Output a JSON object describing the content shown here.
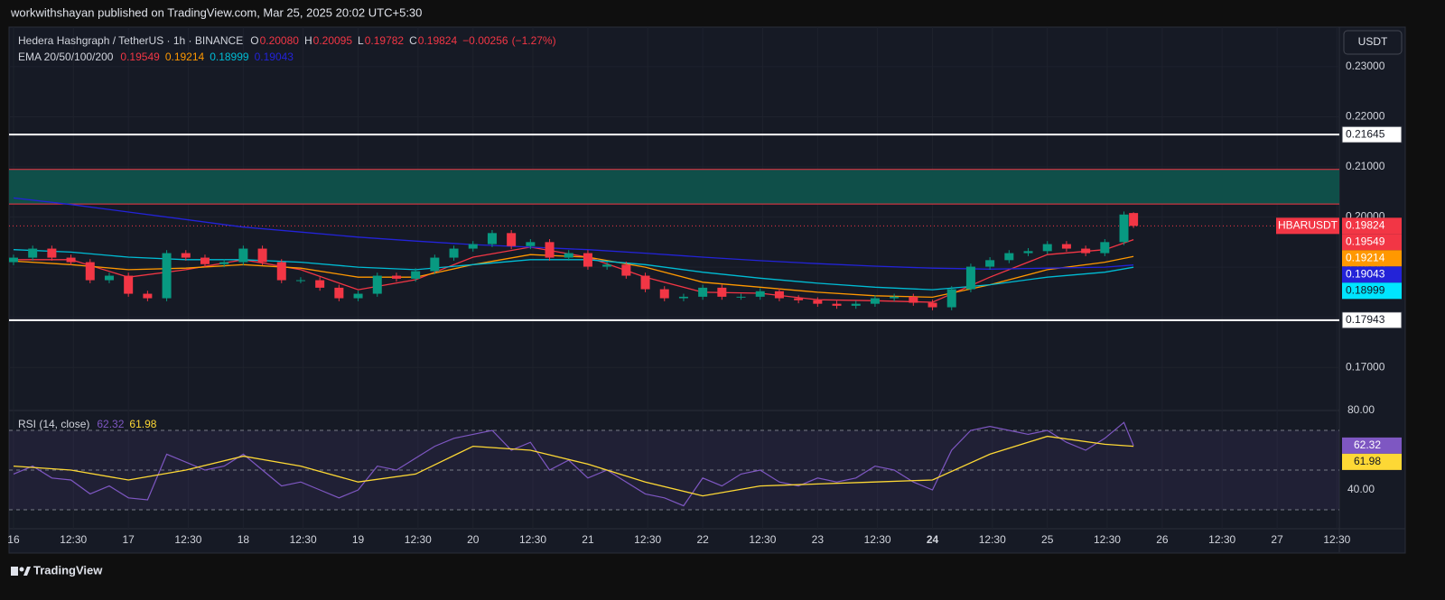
{
  "header": {
    "published": "workwithshayan published on TradingView.com, Mar 25, 2025 20:02 UTC+5:30",
    "footer": "TradingView"
  },
  "chart_data": {
    "type": "candlestick",
    "title": "Hedera Hashgraph / TetherUS · 1h · BINANCE",
    "ohlc_legend": [
      {
        "key": "O",
        "value": {
          "value": 0.2008,
          "label": "0.20080"
        }
      },
      {
        "key": "H",
        "value": 0.20095
      },
      {
        "key": "L",
        "value": 0.19782
      },
      {
        "key": "C",
        "value": 0.19824
      }
    ],
    "change": {
      "value": -0.00256,
      "label": "−0.00256"
    },
    "change_pct": {
      "value": -1.27,
      "label": "(−1.27%)"
    },
    "currency": "USDT",
    "symbol": "HBARUSDT",
    "last_price": 0.19824,
    "up_color": "#089981",
    "down_color": "#f23645",
    "x": [
      0,
      4,
      8,
      12,
      16,
      20,
      24,
      28,
      32,
      36,
      40,
      44,
      48,
      52,
      56,
      60,
      64,
      68,
      72,
      76,
      80,
      84,
      88,
      92,
      96,
      100,
      104,
      108,
      112,
      116,
      120,
      124,
      128,
      132,
      136,
      140,
      144,
      148,
      152,
      156,
      160,
      164,
      168,
      172,
      176,
      180,
      184,
      188,
      192,
      196,
      200,
      204,
      208,
      212,
      216,
      220,
      224,
      228,
      232,
      234
    ],
    "open": [
      0.191,
      0.1919,
      0.1937,
      0.1919,
      0.191,
      0.1874,
      0.1883,
      0.1847,
      0.1838,
      0.1928,
      0.1919,
      0.1906,
      0.191,
      0.1937,
      0.191,
      0.1874,
      0.1874,
      0.1859,
      0.1838,
      0.1847,
      0.1883,
      0.1877,
      0.1892,
      0.1919,
      0.1937,
      0.1946,
      0.1968,
      0.1942,
      0.195,
      0.1919,
      0.1928,
      0.1901,
      0.1905,
      0.1883,
      0.1856,
      0.1838,
      0.1841,
      0.1859,
      0.1841,
      0.1841,
      0.1852,
      0.1838,
      0.1834,
      0.1827,
      0.1823,
      0.1827,
      0.1838,
      0.1841,
      0.1829,
      0.182,
      0.1856,
      0.1901,
      0.1914,
      0.1928,
      0.1932,
      0.1946,
      0.1937,
      0.1928,
      0.195,
      0.2008
    ],
    "high": [
      0.1925,
      0.1943,
      0.1943,
      0.1925,
      0.1916,
      0.1889,
      0.1889,
      0.1853,
      0.1934,
      0.1934,
      0.1925,
      0.1916,
      0.1943,
      0.1943,
      0.1916,
      0.188,
      0.188,
      0.1865,
      0.1853,
      0.1889,
      0.1889,
      0.1898,
      0.1925,
      0.1943,
      0.1952,
      0.1974,
      0.1974,
      0.1956,
      0.1956,
      0.1934,
      0.1934,
      0.1911,
      0.1911,
      0.1889,
      0.1862,
      0.1847,
      0.1865,
      0.1865,
      0.1847,
      0.1858,
      0.1858,
      0.1844,
      0.184,
      0.1833,
      0.1833,
      0.1844,
      0.1847,
      0.1847,
      0.1835,
      0.1862,
      0.1907,
      0.192,
      0.1934,
      0.1938,
      0.1952,
      0.1952,
      0.1943,
      0.1956,
      0.2011,
      0.20095
    ],
    "low": [
      0.1904,
      0.1913,
      0.1913,
      0.1904,
      0.1868,
      0.1868,
      0.1841,
      0.1832,
      0.1832,
      0.1913,
      0.19,
      0.19,
      0.1904,
      0.1904,
      0.1868,
      0.1868,
      0.1853,
      0.1832,
      0.1832,
      0.1841,
      0.1871,
      0.1871,
      0.1886,
      0.1913,
      0.1931,
      0.194,
      0.1936,
      0.1936,
      0.1913,
      0.1913,
      0.1895,
      0.1895,
      0.1877,
      0.185,
      0.1832,
      0.1832,
      0.1835,
      0.1835,
      0.1835,
      0.1835,
      0.1832,
      0.1828,
      0.1821,
      0.1817,
      0.1817,
      0.1821,
      0.1832,
      0.1823,
      0.1814,
      0.1814,
      0.185,
      0.1895,
      0.1908,
      0.1922,
      0.1926,
      0.1931,
      0.1922,
      0.1922,
      0.1944,
      0.19782
    ],
    "close": [
      0.1919,
      0.1937,
      0.1919,
      0.191,
      0.1874,
      0.1883,
      0.1847,
      0.1838,
      0.1928,
      0.1919,
      0.1906,
      0.191,
      0.1937,
      0.191,
      0.1874,
      0.1874,
      0.1859,
      0.1838,
      0.1847,
      0.1883,
      0.1877,
      0.1892,
      0.1919,
      0.1937,
      0.1946,
      0.1968,
      0.1942,
      0.195,
      0.1919,
      0.1928,
      0.1901,
      0.1905,
      0.1883,
      0.1856,
      0.1838,
      0.1841,
      0.1859,
      0.1841,
      0.1841,
      0.1852,
      0.1838,
      0.1834,
      0.1827,
      0.1823,
      0.1827,
      0.1838,
      0.1841,
      0.1829,
      0.182,
      0.1856,
      0.1901,
      0.1914,
      0.1928,
      0.1932,
      0.1946,
      0.1937,
      0.1928,
      0.195,
      0.2005,
      0.19824
    ],
    "xlim": [
      -0.94,
      277
    ],
    "xticks": [
      {
        "value": 0,
        "label": "16"
      },
      {
        "value": 12.5,
        "label": "12:30"
      },
      {
        "value": 24,
        "label": "17"
      },
      {
        "value": 36.5,
        "label": "12:30"
      },
      {
        "value": 48,
        "label": "18"
      },
      {
        "value": 60.5,
        "label": "12:30"
      },
      {
        "value": 72,
        "label": "19"
      },
      {
        "value": 84.5,
        "label": "12:30"
      },
      {
        "value": 96,
        "label": "20"
      },
      {
        "value": 108.5,
        "label": "12:30"
      },
      {
        "value": 120,
        "label": "21"
      },
      {
        "value": 132.5,
        "label": "12:30"
      },
      {
        "value": 144,
        "label": "22"
      },
      {
        "value": 156.5,
        "label": "12:30"
      },
      {
        "value": 168,
        "label": "23"
      },
      {
        "value": 180.5,
        "label": "12:30"
      },
      {
        "value": 192,
        "label": "24",
        "bold": true
      },
      {
        "value": 204.5,
        "label": "12:30"
      },
      {
        "value": 216,
        "label": "25"
      },
      {
        "value": 228.5,
        "label": "12:30"
      },
      {
        "value": 240,
        "label": "26"
      },
      {
        "value": 252.5,
        "label": "12:30"
      },
      {
        "value": 264,
        "label": "27"
      },
      {
        "value": 276.5,
        "label": "12:30"
      }
    ],
    "ylim": [
      0.1614,
      0.2379
    ],
    "yticks": [
      {
        "value": 0.17,
        "label": "0.17000"
      },
      {
        "value": 0.18,
        "label": "0.18000"
      },
      {
        "value": 0.19,
        "label": "0.19000"
      },
      {
        "value": 0.2,
        "label": "0.20000"
      },
      {
        "value": 0.21,
        "label": "0.21000"
      },
      {
        "value": 0.22,
        "label": "0.22000"
      },
      {
        "value": 0.23,
        "label": "0.23000"
      }
    ],
    "levels": [
      0.21645,
      0.17943
    ],
    "zone": [
      0.2026,
      0.2095
    ],
    "zone_color": "#0f4f49",
    "zone_edge_color": "#f23645",
    "ema": {
      "title": "EMA 20/50/100/200",
      "x": [
        0,
        12,
        24,
        36,
        48,
        60,
        72,
        84,
        96,
        108,
        120,
        132,
        144,
        156,
        168,
        180,
        192,
        204,
        216,
        228,
        234
      ],
      "series": [
        {
          "color": "#f23645",
          "values": [
            0.1915,
            0.1915,
            0.188,
            0.1895,
            0.1915,
            0.1895,
            0.1855,
            0.1875,
            0.192,
            0.194,
            0.192,
            0.188,
            0.185,
            0.1848,
            0.1835,
            0.1833,
            0.183,
            0.188,
            0.1925,
            0.1935,
            0.19549
          ]
        },
        {
          "color": "#ff9800",
          "values": [
            0.1912,
            0.1905,
            0.1895,
            0.1898,
            0.1905,
            0.1898,
            0.188,
            0.188,
            0.1905,
            0.1925,
            0.192,
            0.19,
            0.187,
            0.186,
            0.185,
            0.1843,
            0.184,
            0.1865,
            0.1895,
            0.191,
            0.19214
          ]
        },
        {
          "color": "#00bcd4",
          "values": [
            0.1935,
            0.193,
            0.192,
            0.1915,
            0.1915,
            0.191,
            0.19,
            0.1895,
            0.1905,
            0.1915,
            0.1915,
            0.1905,
            0.189,
            0.1878,
            0.1868,
            0.186,
            0.1855,
            0.1865,
            0.188,
            0.189,
            0.18999
          ]
        },
        {
          "color": "#2323d8",
          "values": [
            0.2038,
            0.2025,
            0.201,
            0.1995,
            0.198,
            0.197,
            0.196,
            0.1952,
            0.1945,
            0.194,
            0.1935,
            0.1928,
            0.192,
            0.1913,
            0.1907,
            0.1902,
            0.1898,
            0.1896,
            0.1898,
            0.19,
            0.19043
          ]
        }
      ]
    },
    "rsi": {
      "title": "RSI (14, close)",
      "color": "#7e57c2",
      "values": [
        48,
        52,
        46,
        45,
        38,
        42,
        36,
        35,
        58,
        54,
        50,
        52,
        58,
        50,
        42,
        44,
        40,
        36,
        40,
        52,
        50,
        56,
        62,
        66,
        68,
        70,
        60,
        64,
        50,
        55,
        46,
        50,
        44,
        38,
        36,
        32,
        46,
        42,
        48,
        50,
        44,
        42,
        46,
        44,
        46,
        52,
        50,
        44,
        40,
        60,
        70,
        72,
        70,
        68,
        70,
        64,
        60,
        66,
        74,
        62.32
      ],
      "ma": {
        "color": "#fdd835",
        "x": [
          0,
          12,
          24,
          36,
          48,
          60,
          72,
          84,
          96,
          108,
          120,
          132,
          144,
          156,
          168,
          180,
          192,
          204,
          216,
          228,
          234
        ],
        "values": [
          52,
          50,
          45,
          50,
          57,
          52,
          44,
          48,
          62,
          60,
          53,
          44,
          37,
          42,
          43,
          44,
          45,
          58,
          67,
          63,
          61.98
        ]
      },
      "ylim": [
        20.9,
        80
      ],
      "yticks": [
        {
          "value": 80,
          "label": "80.00"
        },
        {
          "value": 40,
          "label": "40.00"
        }
      ],
      "bands": [
        70,
        50,
        30
      ]
    }
  }
}
